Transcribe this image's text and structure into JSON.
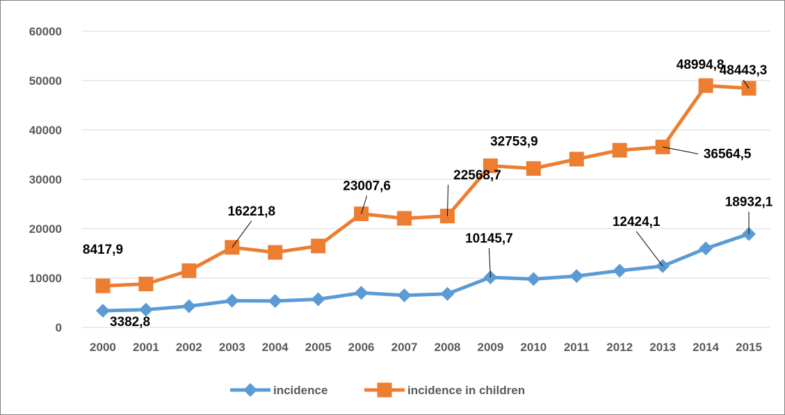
{
  "chart_data": {
    "type": "line",
    "title": "",
    "xlabel": "",
    "ylabel": "",
    "ylim": [
      0,
      60000
    ],
    "yticks": [
      "0",
      "10000",
      "20000",
      "30000",
      "40000",
      "50000",
      "60000"
    ],
    "grid": true,
    "legend_position": "bottom",
    "categories": [
      "2000",
      "2001",
      "2002",
      "2003",
      "2004",
      "2005",
      "2006",
      "2007",
      "2008",
      "2009",
      "2010",
      "2011",
      "2012",
      "2013",
      "2014",
      "2015"
    ],
    "series": [
      {
        "name": "incidence",
        "color": "#5b9bd5",
        "marker": "diamond",
        "values": [
          3382.8,
          3600,
          4300,
          5400,
          5350,
          5700,
          7000,
          6500,
          6800,
          10145.7,
          9800,
          10400,
          11500,
          12424.1,
          16000,
          18932.1
        ],
        "labels": [
          {
            "index": 0,
            "text": "3382,8"
          },
          {
            "index": 9,
            "text": "10145,7"
          },
          {
            "index": 13,
            "text": "12424,1"
          },
          {
            "index": 15,
            "text": "18932,1"
          }
        ]
      },
      {
        "name": "incidence in children",
        "color": "#ed7d31",
        "marker": "square",
        "values": [
          8417.9,
          8800,
          11500,
          16221.8,
          15200,
          16500,
          23007.6,
          22100,
          22568.7,
          32753.9,
          32200,
          34100,
          35900,
          36564.5,
          48994.8,
          48443.3
        ],
        "labels": [
          {
            "index": 0,
            "text": "8417,9"
          },
          {
            "index": 3,
            "text": "16221,8"
          },
          {
            "index": 6,
            "text": "23007,6"
          },
          {
            "index": 8,
            "text": "22568,7"
          },
          {
            "index": 9,
            "text": "32753,9"
          },
          {
            "index": 13,
            "text": "36564,5"
          },
          {
            "index": 14,
            "text": "48994,8"
          },
          {
            "index": 15,
            "text": "48443,3"
          }
        ]
      }
    ]
  }
}
